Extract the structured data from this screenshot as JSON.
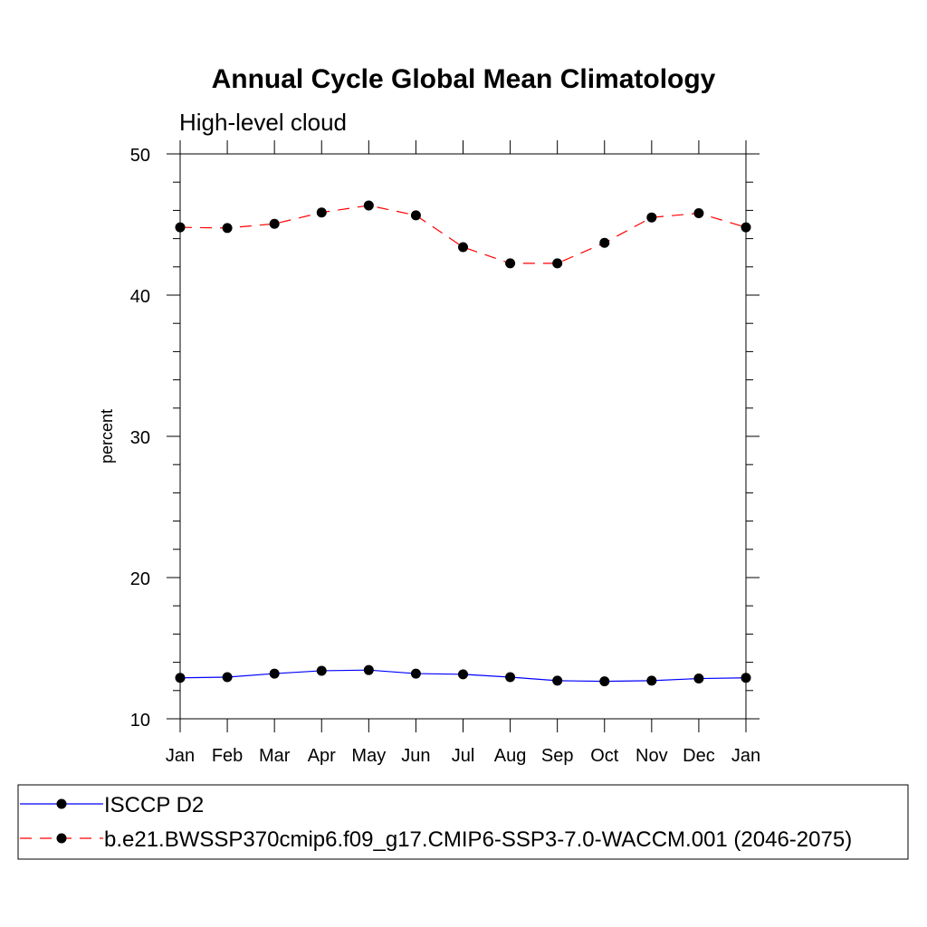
{
  "chart_data": {
    "type": "line",
    "title": "Annual Cycle Global Mean Climatology",
    "subtitle": "High-level cloud",
    "xlabel": "",
    "ylabel": "percent",
    "categories": [
      "Jan",
      "Feb",
      "Mar",
      "Apr",
      "May",
      "Jun",
      "Jul",
      "Aug",
      "Sep",
      "Oct",
      "Nov",
      "Dec",
      "Jan"
    ],
    "ylim": [
      10,
      50
    ],
    "yticks": [
      10,
      20,
      30,
      40,
      50
    ],
    "grid": false,
    "series": [
      {
        "name": "ISCCP D2",
        "color": "#0000ff",
        "dashed": false,
        "values": [
          12.9,
          12.95,
          13.2,
          13.4,
          13.45,
          13.2,
          13.15,
          12.95,
          12.7,
          12.65,
          12.7,
          12.85,
          12.9
        ]
      },
      {
        "name": "b.e21.BWSSP370cmip6.f09_g17.CMIP6-SSP3-7.0-WACCM.001 (2046-2075)",
        "color": "#ff0000",
        "dashed": true,
        "values": [
          44.8,
          44.75,
          45.05,
          45.85,
          46.35,
          45.65,
          43.4,
          42.25,
          42.25,
          43.7,
          45.5,
          45.8,
          44.8
        ]
      }
    ],
    "legend_placement": "bottom"
  }
}
